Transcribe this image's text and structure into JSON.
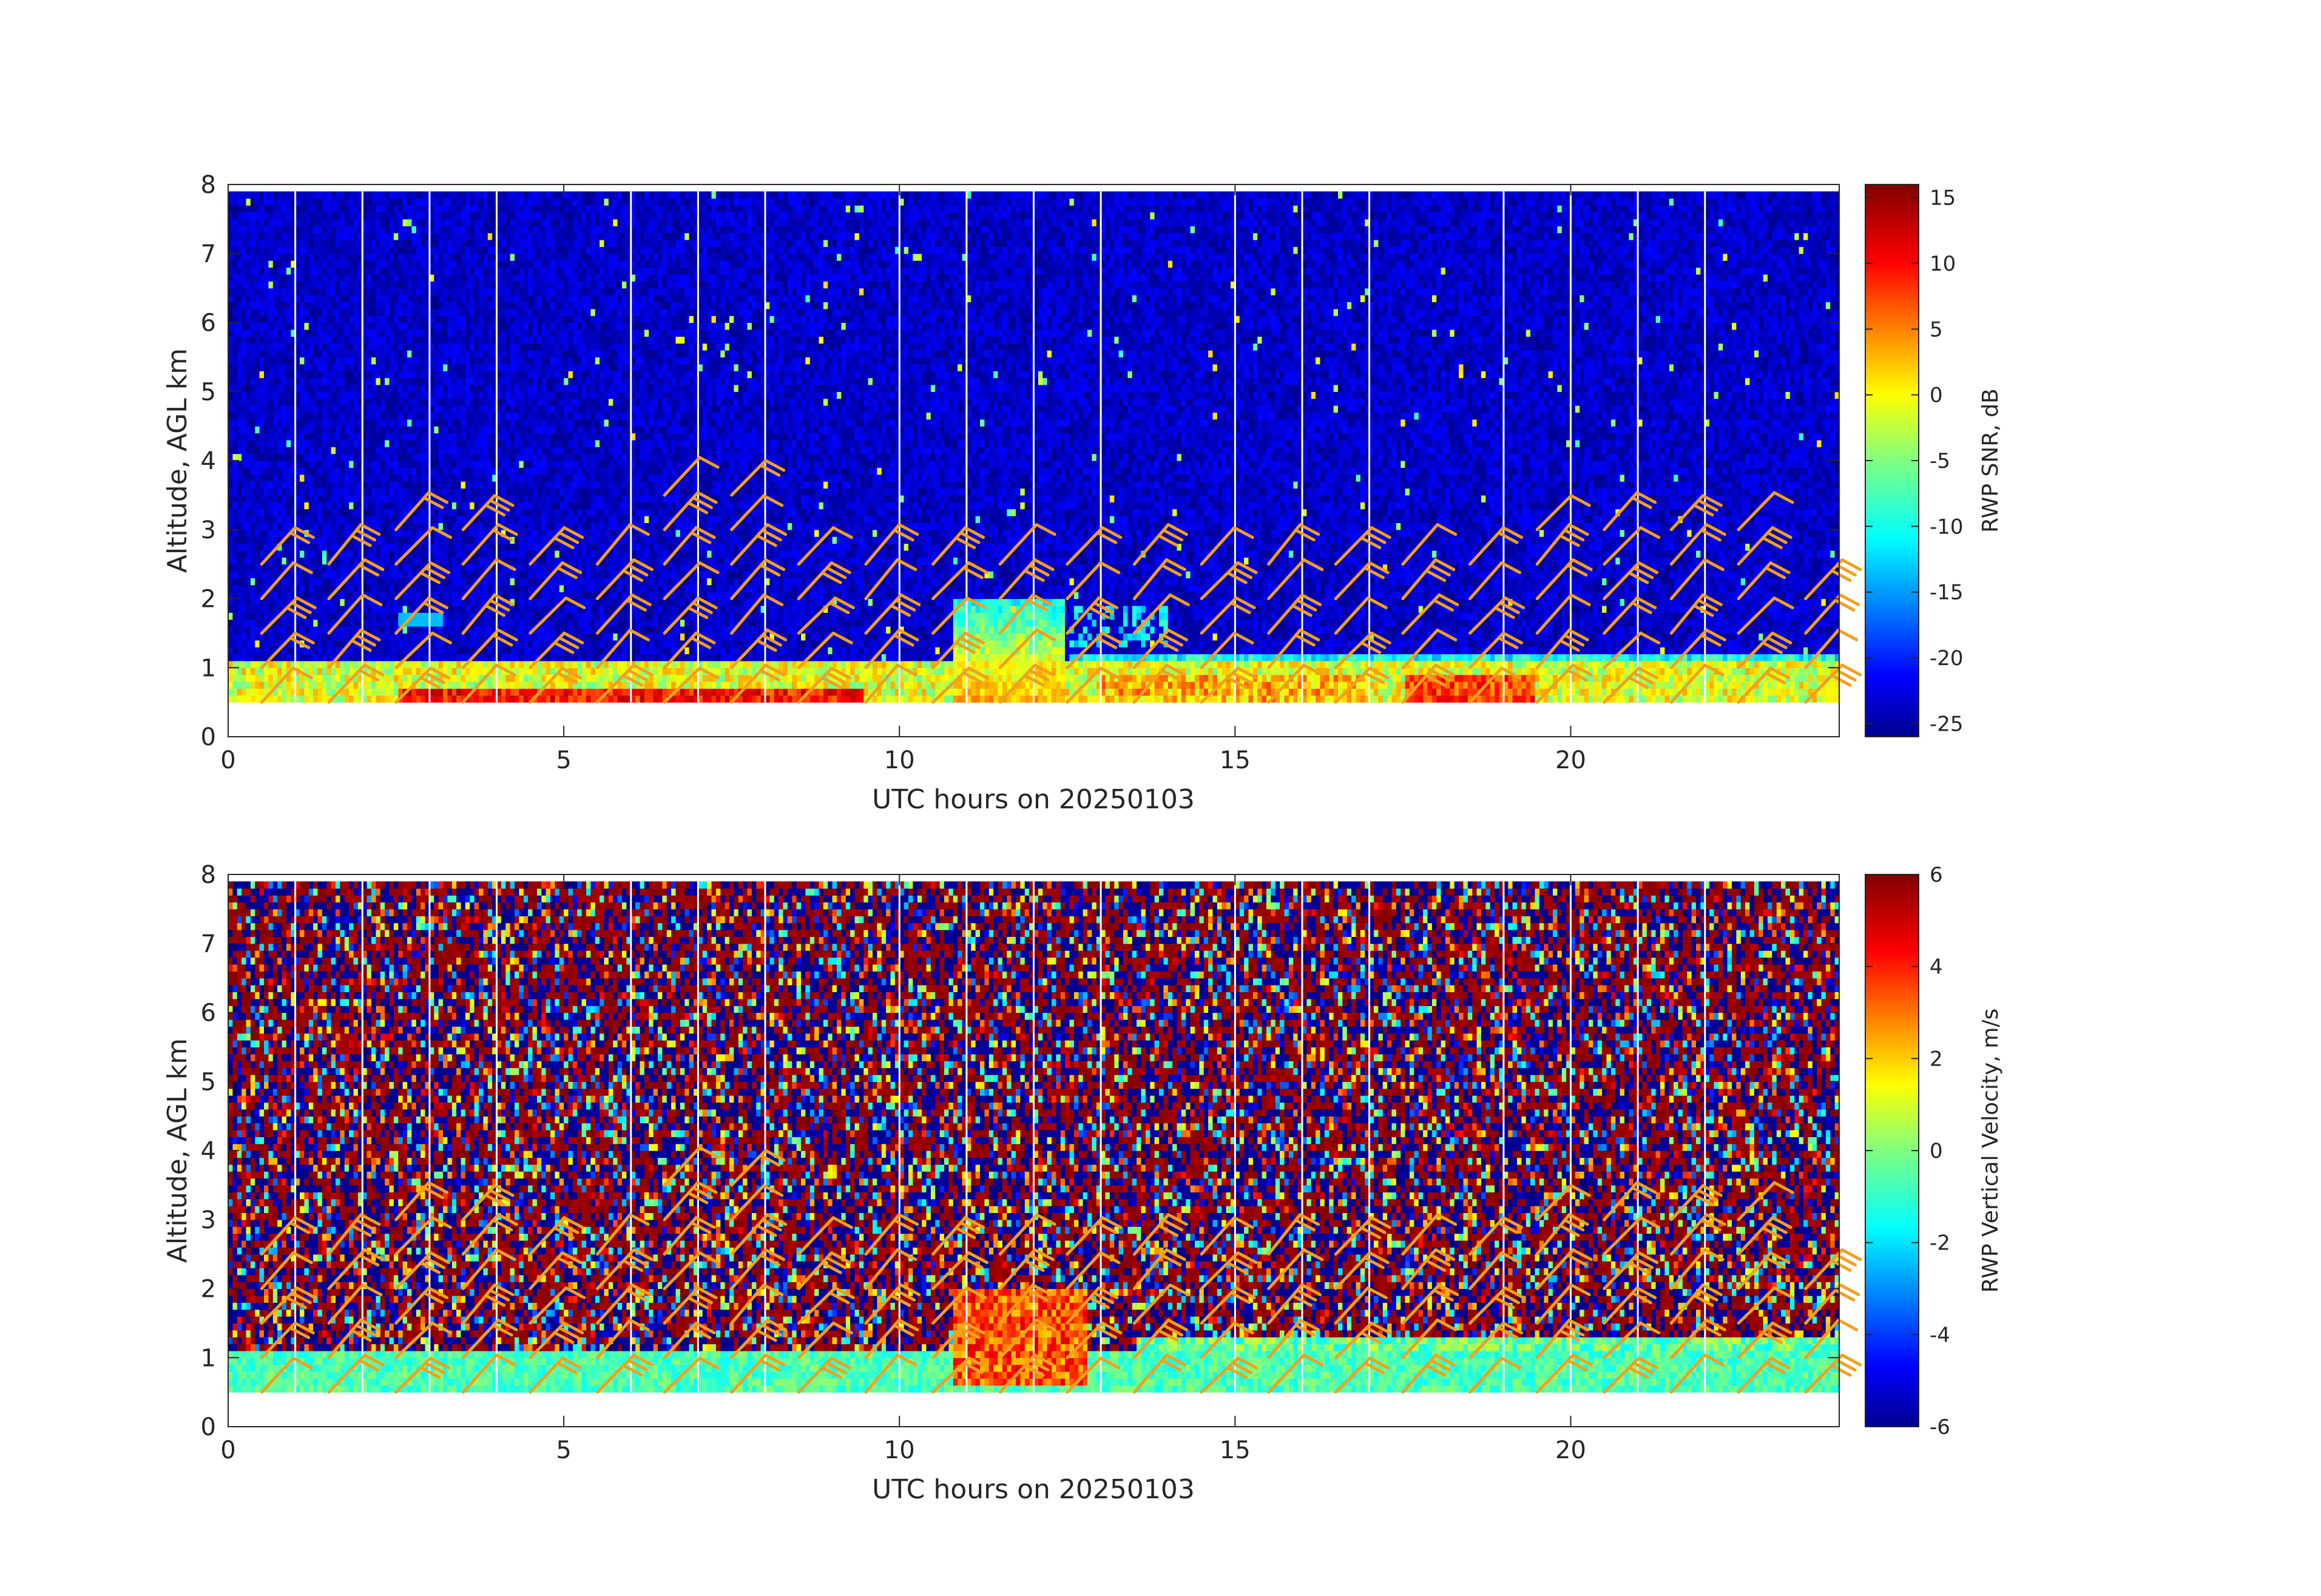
{
  "chart_data": [
    {
      "type": "heatmap",
      "title": "",
      "xlabel": "UTC hours on 20250103",
      "ylabel": "Altitude, AGL km",
      "xlim": [
        0,
        24
      ],
      "ylim": [
        0,
        8
      ],
      "data_altitude_range_km": [
        0.5,
        7.9
      ],
      "x_ticks": [
        0,
        5,
        10,
        15,
        20
      ],
      "y_ticks": [
        0,
        1,
        2,
        3,
        4,
        5,
        6,
        7,
        8
      ],
      "colorbar": {
        "label": "RWP SNR, dB",
        "range": [
          -26,
          16
        ],
        "ticks": [
          15,
          10,
          5,
          0,
          -5,
          -10,
          -15,
          -20,
          -25
        ],
        "colormap": "jet"
      },
      "description_features": {
        "background_level": -23,
        "boundary_layer_top_km": 1.05,
        "strong_layer_hours": [
          2.5,
          9.5
        ],
        "convective_plume_hours": [
          10.8,
          12.5
        ],
        "convective_plume_top_km": 2.0
      },
      "gap_hours": [
        1,
        2,
        3,
        4,
        6,
        7,
        8,
        10,
        11,
        12,
        13,
        15,
        16,
        17,
        19,
        20,
        21,
        22
      ],
      "wind_barb_color": "#f0a020",
      "wind_barbs": {
        "hours": [
          1,
          2,
          3,
          4,
          5,
          6,
          7,
          8,
          9,
          10,
          11,
          12,
          13,
          14,
          15,
          16,
          17,
          18,
          19,
          20,
          21,
          22,
          23,
          24
        ],
        "altitudes_km": [
          0.75,
          1.25,
          1.75,
          2.25,
          2.75,
          3.25,
          3.75
        ]
      }
    },
    {
      "type": "heatmap",
      "title": "",
      "xlabel": "UTC hours on 20250103",
      "ylabel": "Altitude, AGL km",
      "xlim": [
        0,
        24
      ],
      "ylim": [
        0,
        8
      ],
      "data_altitude_range_km": [
        0.5,
        7.9
      ],
      "x_ticks": [
        0,
        5,
        10,
        15,
        20
      ],
      "y_ticks": [
        0,
        1,
        2,
        3,
        4,
        5,
        6,
        7,
        8
      ],
      "colorbar": {
        "label": "RWP Vertical Velocity, m/s",
        "range": [
          -6,
          6
        ],
        "ticks": [
          6,
          4,
          2,
          0,
          -2,
          -4,
          -6
        ],
        "colormap": "jet"
      },
      "description_features": {
        "boundary_layer_velocity": -0.6,
        "boundary_layer_top_km": 1.1,
        "updraft_hours": [
          10.8,
          12.8
        ],
        "updraft_velocity": 3.5,
        "noise_above_km": 1.2
      },
      "gap_hours": [
        1,
        2,
        3,
        4,
        6,
        7,
        8,
        10,
        11,
        12,
        13,
        15,
        16,
        17,
        19,
        20,
        21,
        22
      ],
      "wind_barb_color": "#f0a020",
      "wind_barbs": {
        "hours": [
          1,
          2,
          3,
          4,
          5,
          6,
          7,
          8,
          9,
          10,
          11,
          12,
          13,
          14,
          15,
          16,
          17,
          18,
          19,
          20,
          21,
          22,
          23,
          24
        ],
        "altitudes_km": [
          0.75,
          1.25,
          1.75,
          2.25,
          2.75,
          3.25,
          3.75
        ]
      }
    }
  ]
}
